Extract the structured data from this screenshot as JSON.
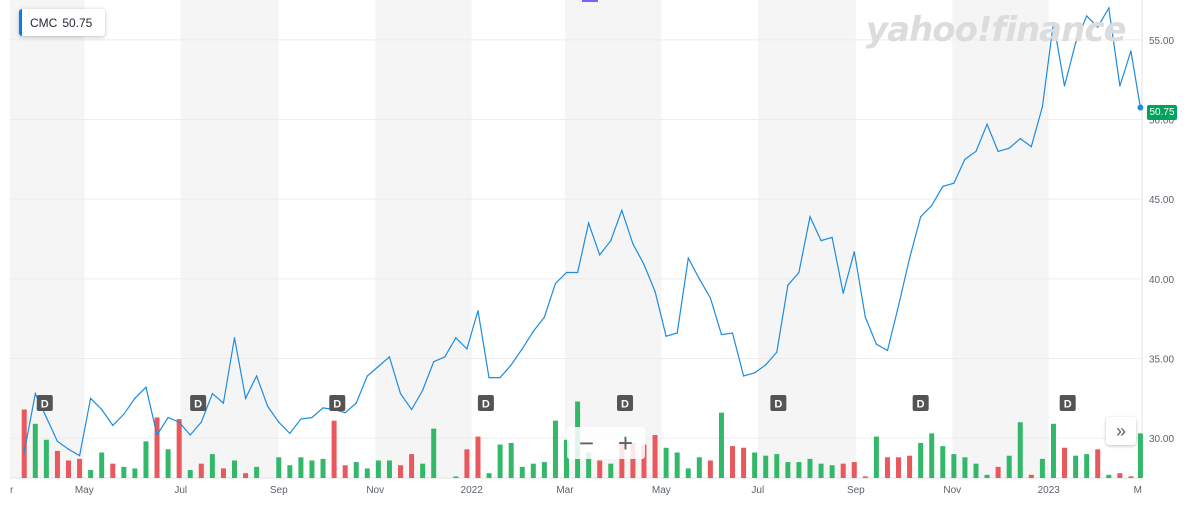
{
  "legend": {
    "symbol": "CMC",
    "value": "50.75"
  },
  "watermark": "yahoo!finance",
  "last_price_tag": "50.75",
  "zoom": {
    "minus": "−",
    "plus": "+"
  },
  "nav_more": "»",
  "dividend_marker_label": "D",
  "colors": {
    "line": "#1d8ce0",
    "up": "#33b86a",
    "down": "#e8585c",
    "band": "#f5f5f5",
    "tag": "#00a35c"
  },
  "chart_data": {
    "type": "line",
    "series": [
      {
        "name": "CMC",
        "x": [
          "2021-03-24",
          "2021-03-31",
          "2021-04-07",
          "2021-04-14",
          "2021-04-21",
          "2021-04-28",
          "2021-05-05",
          "2021-05-12",
          "2021-05-19",
          "2021-05-26",
          "2021-06-02",
          "2021-06-09",
          "2021-06-16",
          "2021-06-23",
          "2021-06-30",
          "2021-07-07",
          "2021-07-14",
          "2021-07-21",
          "2021-07-28",
          "2021-08-04",
          "2021-08-11",
          "2021-08-18",
          "2021-08-25",
          "2021-09-01",
          "2021-09-08",
          "2021-09-15",
          "2021-09-22",
          "2021-09-29",
          "2021-10-06",
          "2021-10-13",
          "2021-10-20",
          "2021-10-27",
          "2021-11-03",
          "2021-11-10",
          "2021-11-17",
          "2021-11-24",
          "2021-12-01",
          "2021-12-08",
          "2021-12-15",
          "2021-12-22",
          "2021-12-29",
          "2022-01-05",
          "2022-01-12",
          "2022-01-19",
          "2022-01-26",
          "2022-02-02",
          "2022-02-09",
          "2022-02-16",
          "2022-02-23",
          "2022-03-02",
          "2022-03-09",
          "2022-03-16",
          "2022-03-23",
          "2022-03-30",
          "2022-04-06",
          "2022-04-13",
          "2022-04-20",
          "2022-04-27",
          "2022-05-04",
          "2022-05-11",
          "2022-05-18",
          "2022-05-25",
          "2022-06-01",
          "2022-06-08",
          "2022-06-15",
          "2022-06-22",
          "2022-06-29",
          "2022-07-06",
          "2022-07-13",
          "2022-07-20",
          "2022-07-27",
          "2022-08-03",
          "2022-08-10",
          "2022-08-17",
          "2022-08-24",
          "2022-08-31",
          "2022-09-07",
          "2022-09-14",
          "2022-09-21",
          "2022-09-28",
          "2022-10-05",
          "2022-10-12",
          "2022-10-19",
          "2022-10-26",
          "2022-11-02",
          "2022-11-09",
          "2022-11-16",
          "2022-11-23",
          "2022-11-30",
          "2022-12-07",
          "2022-12-14",
          "2022-12-21",
          "2022-12-28",
          "2023-01-04",
          "2023-01-11",
          "2023-01-18",
          "2023-01-25",
          "2023-02-01",
          "2023-02-08",
          "2023-02-15",
          "2023-02-22",
          "2023-02-28"
        ],
        "close": [
          29.1,
          32.8,
          31.3,
          29.8,
          29.3,
          28.9,
          32.5,
          31.8,
          30.8,
          31.5,
          32.5,
          33.2,
          30.2,
          31.3,
          31.0,
          30.2,
          31.0,
          32.8,
          32.2,
          36.3,
          32.5,
          33.9,
          32.0,
          31.0,
          30.3,
          31.2,
          31.3,
          31.9,
          31.8,
          31.6,
          32.2,
          33.9,
          34.5,
          35.1,
          32.8,
          31.8,
          33.0,
          34.8,
          35.1,
          36.3,
          35.6,
          38.0,
          33.8,
          33.8,
          34.6,
          35.6,
          36.7,
          37.6,
          39.7,
          40.4,
          40.4,
          43.5,
          41.5,
          42.4,
          44.3,
          42.2,
          40.9,
          39.2,
          36.4,
          36.6,
          41.3,
          40.0,
          38.8,
          36.5,
          36.6,
          33.9,
          34.1,
          34.6,
          35.4,
          39.6,
          40.4,
          43.9,
          42.4,
          42.6,
          39.1,
          41.7,
          37.6,
          35.9,
          35.5,
          38.3,
          41.3,
          43.9,
          44.6,
          45.8,
          46.0,
          47.5,
          48.0,
          49.7,
          48.0,
          48.2,
          48.8,
          48.3,
          50.8,
          56.1,
          52.1,
          54.8,
          56.5,
          55.8,
          57.0,
          52.1,
          54.3,
          50.75
        ],
        "volume_up": [
          false,
          true,
          true,
          false,
          false,
          false,
          true,
          true,
          false,
          true,
          true,
          true,
          false,
          true,
          false,
          true,
          false,
          true,
          false,
          true,
          false,
          true,
          false,
          true,
          true,
          true,
          true,
          true,
          false,
          false,
          true,
          true,
          true,
          true,
          false,
          false,
          true,
          true,
          true,
          true,
          false,
          false,
          true,
          true,
          true,
          true,
          true,
          true,
          true,
          true,
          true,
          true,
          false,
          true,
          false,
          false,
          false,
          false,
          true,
          true,
          true,
          true,
          false,
          true,
          false,
          false,
          true,
          true,
          true,
          true,
          true,
          true,
          true,
          true,
          false,
          false,
          false,
          true,
          false,
          false,
          false,
          true,
          true,
          true,
          true,
          true,
          true,
          true,
          false,
          true,
          true,
          false,
          true,
          true,
          false,
          true,
          true,
          false,
          true,
          false,
          false,
          true
        ],
        "volume": [
          31.8,
          30.9,
          29.9,
          29.2,
          28.6,
          28.7,
          28.0,
          29.1,
          28.4,
          28.2,
          28.1,
          29.8,
          31.3,
          29.3,
          31.2,
          28.0,
          28.4,
          29.0,
          28.1,
          28.6,
          27.8,
          28.2,
          27.3,
          28.8,
          28.3,
          28.8,
          28.6,
          28.7,
          31.1,
          28.3,
          28.5,
          28.1,
          28.6,
          28.6,
          28.3,
          29.0,
          28.4,
          30.6,
          27.5,
          27.6,
          29.3,
          30.1,
          27.8,
          29.6,
          29.7,
          28.2,
          28.4,
          28.5,
          31.1,
          29.9,
          32.3,
          29.1,
          28.6,
          28.4,
          29.8,
          29.7,
          29.6,
          30.2,
          29.4,
          29.1,
          28.1,
          28.8,
          28.6,
          31.6,
          29.5,
          29.4,
          29.1,
          28.9,
          29.0,
          28.5,
          28.5,
          28.7,
          28.4,
          28.3,
          28.4,
          28.5,
          27.6,
          30.1,
          28.8,
          28.8,
          28.9,
          29.7,
          30.3,
          29.5,
          29.0,
          28.8,
          28.4,
          27.7,
          28.2,
          28.9,
          31.0,
          27.7,
          28.7,
          30.9,
          29.4,
          28.9,
          29.0,
          29.3,
          27.7,
          27.8,
          27.6,
          30.3
        ],
        "dividend_dates": [
          "2021-04-06",
          "2021-07-12",
          "2021-10-08",
          "2022-01-10",
          "2022-04-08",
          "2022-07-14",
          "2022-10-12",
          "2023-01-13"
        ]
      }
    ],
    "x_tick_labels": [
      "r",
      "May",
      "Jul",
      "Sep",
      "Nov",
      "2022",
      "Mar",
      "May",
      "Jul",
      "Sep",
      "Nov",
      "2023",
      "M"
    ],
    "x_tick_dates": [
      "2021-03-15",
      "2021-05-01",
      "2021-07-01",
      "2021-09-01",
      "2021-11-01",
      "2022-01-01",
      "2022-03-01",
      "2022-05-01",
      "2022-07-01",
      "2022-09-01",
      "2022-11-01",
      "2023-01-01",
      "2023-03-01"
    ],
    "y_tick_labels": [
      "30.00",
      "35.00",
      "40.00",
      "45.00",
      "50.00",
      "55.00"
    ],
    "y_ticks": [
      30,
      35,
      40,
      45,
      50,
      55
    ],
    "ylim": [
      27.5,
      57.5
    ],
    "xlim": [
      "2021-03-15",
      "2023-03-01"
    ],
    "grid": true,
    "legend_position": "top-left"
  }
}
